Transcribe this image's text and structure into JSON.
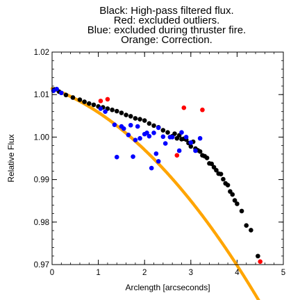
{
  "chart_data": {
    "type": "scatter",
    "title_lines": [
      "Black: High-pass filtered flux.",
      "Red: excluded outliers.",
      "Blue: excluded during thruster fire.",
      "Orange: Correction."
    ],
    "xlabel": "Arclength [arcseconds]",
    "ylabel": "Relative Flux",
    "xlim": [
      0,
      5
    ],
    "ylim": [
      0.97,
      1.02
    ],
    "xticks": [
      "0",
      "1",
      "2",
      "3",
      "4",
      "5"
    ],
    "yticks": [
      "0.97",
      "0.98",
      "0.99",
      "1.00",
      "1.01",
      "1.02"
    ],
    "correction_curve": {
      "a": 1.0114,
      "b": -0.004,
      "c": -0.0016,
      "x_start": 0.0,
      "x_end": 4.5
    },
    "series": [
      {
        "name": "Black: High-pass filtered flux.",
        "color": "#000000",
        "x": [
          0.05,
          0.15,
          0.3,
          0.45,
          0.6,
          0.7,
          0.8,
          0.9,
          1.0,
          1.1,
          1.2,
          1.3,
          1.4,
          1.5,
          1.6,
          1.7,
          1.8,
          1.9,
          2.0,
          2.1,
          2.2,
          2.3,
          2.4,
          2.5,
          2.6,
          2.65,
          2.7,
          2.75,
          2.8,
          2.85,
          2.9,
          2.95,
          3.0,
          3.05,
          3.1,
          3.15,
          3.2,
          3.25,
          3.3,
          3.35,
          3.4,
          3.45,
          3.5,
          3.55,
          3.6,
          3.65,
          3.7,
          3.75,
          3.8,
          3.85,
          3.9,
          3.95,
          4.0,
          4.1,
          4.2,
          4.3,
          4.45
        ],
        "y": [
          1.0112,
          1.0107,
          1.0099,
          1.0093,
          1.0088,
          1.0083,
          1.0079,
          1.0076,
          1.0072,
          1.007,
          1.0067,
          1.0064,
          1.0061,
          1.0057,
          1.0052,
          1.0049,
          1.0044,
          1.0042,
          1.0039,
          1.0032,
          1.0027,
          1.0023,
          1.0016,
          1.0011,
          1.0002,
          1.0008,
          0.9997,
          1.0004,
          0.9995,
          0.9996,
          0.9994,
          0.9986,
          0.9978,
          0.9989,
          0.9973,
          0.9969,
          0.9966,
          0.9957,
          0.9955,
          0.9951,
          0.9938,
          0.9937,
          0.9929,
          0.9922,
          0.9914,
          0.9913,
          0.9901,
          0.9891,
          0.9887,
          0.9872,
          0.9865,
          0.9851,
          0.9843,
          0.9826,
          0.9792,
          0.9781,
          0.972
        ]
      },
      {
        "name": "Red: excluded outliers.",
        "color": "#ff0000",
        "x": [
          1.05,
          1.2,
          2.85,
          3.25,
          2.7,
          4.5
        ],
        "y": [
          1.0085,
          1.0089,
          1.0069,
          1.0064,
          0.9957,
          0.9707
        ]
      },
      {
        "name": "Blue: excluded during thruster fire.",
        "color": "#0000ff",
        "x": [
          0.03,
          0.1,
          0.2,
          1.05,
          1.15,
          1.35,
          1.5,
          1.55,
          1.65,
          1.7,
          1.8,
          1.85,
          1.9,
          2.0,
          2.05,
          2.1,
          2.2,
          2.25,
          2.3,
          2.4,
          2.45,
          2.55,
          2.6,
          2.75,
          2.8,
          2.9,
          3.0,
          3.1,
          3.2,
          2.3,
          2.15,
          1.75,
          1.4
        ],
        "y": [
          1.0109,
          1.0113,
          1.0104,
          1.0067,
          1.006,
          1.0029,
          1.0025,
          1.002,
          1.0005,
          1.0028,
          0.9993,
          1.0025,
          0.9997,
          1.0007,
          1.001,
          1.0002,
          1.001,
          0.9961,
          1.0022,
          1.0001,
          0.9985,
          1.0,
          1.0,
          0.9968,
          1.0011,
          1.0,
          0.9987,
          0.9968,
          0.9997,
          0.9943,
          0.9927,
          0.9954,
          0.9953
        ]
      }
    ]
  }
}
